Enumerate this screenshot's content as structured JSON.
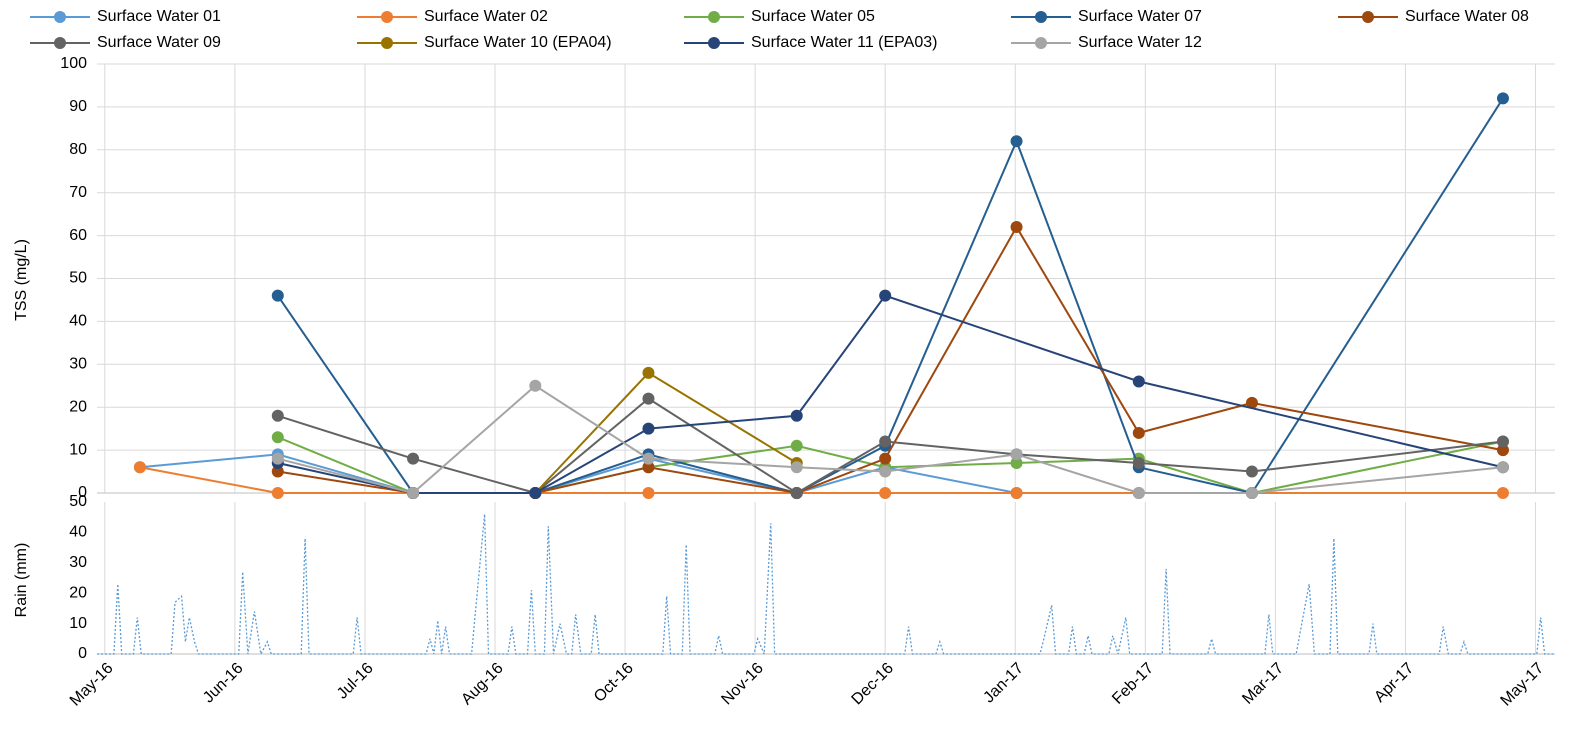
{
  "chart_data": [
    {
      "type": "line",
      "ylabel": "TSS (mg/L)",
      "ylim": [
        0,
        100
      ],
      "yticks": [
        0,
        10,
        20,
        30,
        40,
        50,
        60,
        70,
        80,
        90,
        100
      ],
      "xlim": [
        -0.06,
        11.15
      ],
      "xticks": [
        0,
        1,
        2,
        3,
        4,
        5,
        6,
        7,
        8,
        9,
        10,
        11
      ],
      "grid": true,
      "legend": "top",
      "series": [
        {
          "name": "Surface Water 01",
          "color": "#5b9bd5",
          "x": [
            0.27,
            1.33,
            2.37,
            3.31,
            4.18,
            5.32,
            6.0,
            7.01,
            7.95,
            8.82
          ],
          "values": [
            6,
            9,
            0,
            0,
            8,
            0,
            6,
            0,
            0,
            0
          ]
        },
        {
          "name": "Surface Water 02",
          "color": "#ed7d31",
          "x": [
            0.27,
            1.33,
            2.37,
            3.31,
            4.18,
            5.32,
            6.0,
            7.01,
            7.95,
            8.82,
            10.75
          ],
          "values": [
            6,
            0,
            0,
            0,
            0,
            0,
            0,
            0,
            0,
            0,
            0
          ]
        },
        {
          "name": "Surface Water 05",
          "color": "#70ad47",
          "x": [
            1.33,
            2.37,
            3.31,
            4.18,
            5.32,
            6.0,
            7.01,
            7.95,
            8.82,
            10.75
          ],
          "values": [
            13,
            0,
            0,
            6,
            11,
            6,
            7,
            8,
            0,
            12
          ]
        },
        {
          "name": "Surface Water 07",
          "color": "#255e91",
          "x": [
            1.33,
            2.37,
            3.31,
            4.18,
            5.32,
            6.0,
            7.01,
            7.95,
            8.82,
            10.75
          ],
          "values": [
            46,
            0,
            0,
            9,
            0,
            11,
            82,
            6,
            0,
            92
          ]
        },
        {
          "name": "Surface Water 08",
          "color": "#9e480e",
          "x": [
            1.33,
            2.37,
            3.31,
            4.18,
            5.32,
            6.0,
            7.01,
            7.95,
            8.82,
            10.75
          ],
          "values": [
            5,
            0,
            0,
            6,
            0,
            8,
            62,
            14,
            21,
            10
          ]
        },
        {
          "name": "Surface Water 09",
          "color": "#636363",
          "x": [
            1.33,
            2.37,
            3.31,
            4.18,
            5.32,
            6.0,
            7.01,
            7.95,
            8.82,
            10.75
          ],
          "values": [
            18,
            8,
            0,
            22,
            0,
            12,
            9,
            7,
            5,
            12
          ]
        },
        {
          "name": "Surface Water 10 (EPA04)",
          "color": "#997300",
          "x": [
            3.31,
            4.18,
            5.32
          ],
          "values": [
            0,
            28,
            7
          ]
        },
        {
          "name": "Surface Water 11 (EPA03)",
          "color": "#264478",
          "x": [
            1.33,
            2.37,
            3.31,
            4.18,
            5.32,
            6.0,
            7.95,
            10.75
          ],
          "values": [
            7,
            0,
            0,
            15,
            18,
            46,
            26,
            6
          ]
        },
        {
          "name": "Surface Water 12",
          "color": "#a5a5a5",
          "x": [
            1.33,
            2.37,
            3.31,
            4.18,
            5.32,
            6.0,
            7.01,
            7.95,
            8.82,
            10.75
          ],
          "values": [
            8,
            0,
            25,
            8,
            6,
            5,
            9,
            0,
            0,
            6
          ]
        }
      ]
    },
    {
      "type": "line",
      "ylabel": "Rain (mm)",
      "ylim": [
        0,
        50
      ],
      "yticks": [
        0,
        10,
        20,
        30,
        40,
        50
      ],
      "xlim": [
        -0.06,
        11.15
      ],
      "xticks": [
        {
          "value": 0,
          "label": "May-16"
        },
        {
          "value": 1,
          "label": "Jun-16"
        },
        {
          "value": 2,
          "label": "Jul-16"
        },
        {
          "value": 3,
          "label": "Aug-16"
        },
        {
          "value": 4,
          "label": "Oct-16"
        },
        {
          "value": 5,
          "label": "Nov-16"
        },
        {
          "value": 6,
          "label": "Dec-16"
        },
        {
          "value": 7,
          "label": "Jan-17"
        },
        {
          "value": 8,
          "label": "Feb-17"
        },
        {
          "value": 9,
          "label": "Mar-17"
        },
        {
          "value": 10,
          "label": "Apr-17"
        },
        {
          "value": 11,
          "label": "May-17"
        }
      ],
      "grid": true,
      "dashed": true,
      "series": [
        {
          "color": "#5b9bd5",
          "x": [
            -0.06,
            0.07,
            0.1,
            0.13,
            0.22,
            0.25,
            0.28,
            0.51,
            0.54,
            0.59,
            0.62,
            0.65,
            0.69,
            0.72,
            1.03,
            1.06,
            1.1,
            1.15,
            1.2,
            1.25,
            1.28,
            1.51,
            1.54,
            1.57,
            1.91,
            1.94,
            1.97,
            2.47,
            2.5,
            2.53,
            2.56,
            2.59,
            2.62,
            2.65,
            2.82,
            2.85,
            2.92,
            2.95,
            3.1,
            3.13,
            3.16,
            3.25,
            3.28,
            3.31,
            3.38,
            3.41,
            3.45,
            3.5,
            3.55,
            3.59,
            3.62,
            3.66,
            3.74,
            3.77,
            3.8,
            4.29,
            4.32,
            4.35,
            4.44,
            4.47,
            4.5,
            4.69,
            4.72,
            4.75,
            4.99,
            5.02,
            5.07,
            5.12,
            5.15,
            6.15,
            6.18,
            6.21,
            6.39,
            6.42,
            6.45,
            7.19,
            7.22,
            7.28,
            7.31,
            7.41,
            7.44,
            7.47,
            7.53,
            7.56,
            7.59,
            7.72,
            7.75,
            7.79,
            7.85,
            7.88,
            8.13,
            8.16,
            8.19,
            8.48,
            8.51,
            8.54,
            8.92,
            8.95,
            8.98,
            9.16,
            9.19,
            9.26,
            9.3,
            9.42,
            9.45,
            9.48,
            9.72,
            9.75,
            9.78,
            10.26,
            10.29,
            10.33,
            10.42,
            10.45,
            10.48,
            11.01,
            11.04,
            11.07,
            11.15
          ],
          "values": [
            0,
            0,
            23,
            0,
            0,
            12,
            0,
            0,
            17,
            19,
            4,
            12,
            4,
            0,
            0,
            27,
            0,
            14,
            0,
            4,
            0,
            0,
            38,
            0,
            0,
            12,
            0,
            0,
            5,
            0,
            11,
            0,
            9,
            0,
            0,
            14,
            46,
            0,
            0,
            9,
            0,
            0,
            21,
            0,
            0,
            42,
            0,
            10,
            0,
            0,
            13,
            0,
            0,
            13,
            0,
            0,
            19,
            0,
            0,
            36,
            0,
            0,
            6,
            0,
            0,
            5,
            0,
            43,
            0,
            0,
            9,
            0,
            0,
            4,
            0,
            0,
            5,
            16,
            0,
            0,
            9,
            0,
            0,
            6,
            0,
            0,
            6,
            0,
            12,
            0,
            0,
            28,
            0,
            0,
            5,
            0,
            0,
            13,
            0,
            0,
            7,
            23,
            0,
            0,
            38,
            0,
            0,
            10,
            0,
            0,
            9,
            0,
            0,
            4,
            0,
            0,
            12,
            0,
            0
          ]
        }
      ]
    }
  ]
}
